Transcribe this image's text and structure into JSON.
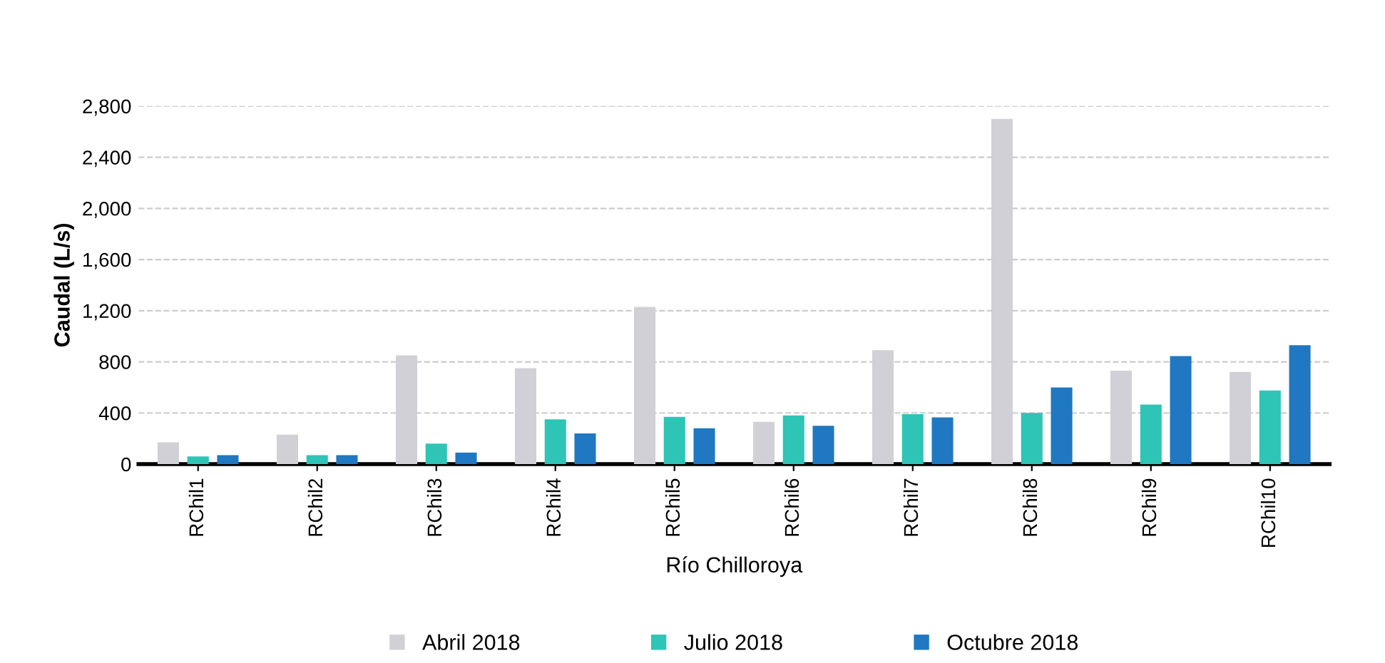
{
  "chart_data": {
    "type": "bar",
    "xlabel": "Río Chilloroya",
    "ylabel": "Caudal (L/s)",
    "categories": [
      "RChil1",
      "RChil2",
      "RChil3",
      "RChil4",
      "RChil5",
      "RChil6",
      "RChil7",
      "RChil8",
      "RChil9",
      "RChil10"
    ],
    "series": [
      {
        "name": "Abril 2018",
        "color": "#d0d0d6",
        "values": [
          170,
          230,
          850,
          750,
          1230,
          330,
          890,
          2700,
          730,
          720
        ]
      },
      {
        "name": "Julio 2018",
        "color": "#2ec4b6",
        "values": [
          60,
          70,
          160,
          350,
          370,
          380,
          390,
          400,
          465,
          575
        ]
      },
      {
        "name": "Octubre 2018",
        "color": "#1f78c1",
        "values": [
          70,
          70,
          90,
          240,
          280,
          300,
          365,
          600,
          845,
          930
        ]
      }
    ],
    "ylim": [
      0,
      2800
    ],
    "yticks": [
      {
        "value": 0,
        "label": "0"
      },
      {
        "value": 400,
        "label": "400"
      },
      {
        "value": 800,
        "label": "800"
      },
      {
        "value": 1200,
        "label": "1,200"
      },
      {
        "value": 1600,
        "label": "1,600"
      },
      {
        "value": 2000,
        "label": "2,000"
      },
      {
        "value": 2400,
        "label": "2,400"
      },
      {
        "value": 2800,
        "label": "2,800"
      }
    ],
    "grid": "y",
    "legend": "bottom"
  }
}
